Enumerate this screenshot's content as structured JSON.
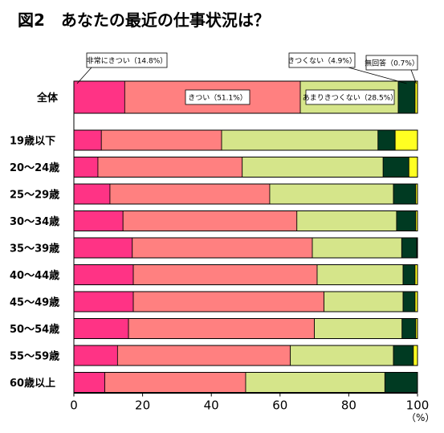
{
  "chart_data": {
    "type": "bar",
    "orientation": "horizontal",
    "stacked": true,
    "title": "図2　あなたの最近の仕事状況は？",
    "unit_label": "（%）",
    "xlim": [
      0,
      100
    ],
    "x_ticks": [
      "0",
      "20",
      "40",
      "60",
      "80",
      "100"
    ],
    "categories": [
      "全体",
      "19歳以下",
      "20～24歳",
      "25～29歳",
      "30～34歳",
      "35～39歳",
      "40～44歳",
      "45～49歳",
      "50～54歳",
      "55～59歳",
      "60歳以上"
    ],
    "series": [
      {
        "name": "非常にきつい",
        "color": "#ff3385",
        "values": [
          14.8,
          8.0,
          7.0,
          10.5,
          14.3,
          17.0,
          17.3,
          17.3,
          15.9,
          12.7,
          9.0
        ]
      },
      {
        "name": "きつい",
        "color": "#ff8080",
        "values": [
          51.1,
          35.0,
          42.0,
          46.5,
          50.6,
          52.4,
          53.5,
          55.5,
          54.1,
          50.3,
          41.0
        ]
      },
      {
        "name": "あまりきつくない",
        "color": "#d5e58a",
        "values": [
          28.5,
          45.5,
          41.0,
          36.0,
          29.0,
          26.0,
          25.0,
          23.0,
          25.5,
          30.0,
          40.5
        ]
      },
      {
        "name": "きつくない",
        "color": "#003a22",
        "values": [
          4.9,
          5.0,
          7.5,
          6.5,
          5.6,
          4.4,
          3.5,
          3.5,
          4.0,
          5.8,
          9.5
        ]
      },
      {
        "name": "無回答",
        "color": "#ffff22",
        "values": [
          0.7,
          6.5,
          2.5,
          0.5,
          0.5,
          0.2,
          0.7,
          0.7,
          0.5,
          1.2,
          0.0
        ]
      }
    ],
    "callouts": [
      {
        "series": 0,
        "text": "非常にきつい（14.8%）"
      },
      {
        "series": 1,
        "text": "きつい（51.1%）"
      },
      {
        "series": 2,
        "text": "あまりきつくない（28.5%）"
      },
      {
        "series": 3,
        "text": "きつくない（4.9%）"
      },
      {
        "series": 4,
        "text": "無回答（0.7%）"
      }
    ],
    "grid": false,
    "legend": "callouts-on-first-bar"
  }
}
